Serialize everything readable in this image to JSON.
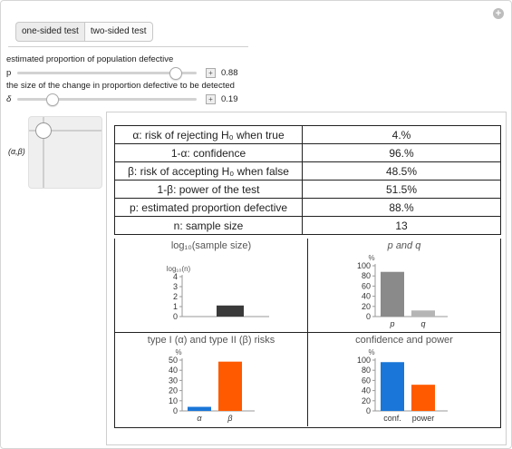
{
  "controls": {
    "test_options": [
      "one-sided test",
      "two-sided test"
    ],
    "selected_test": "two-sided test",
    "p_caption": "estimated proportion of population defective",
    "p_name": "p",
    "p_value": "0.88",
    "p_fraction": 0.88,
    "delta_caption": "the size of the change in proportion defective to be detected",
    "delta_name": "δ",
    "delta_value": "0.19",
    "delta_fraction": 0.19,
    "locator_label": "(α,β)"
  },
  "table": [
    {
      "label": "α: risk of rejecting H₀ when true",
      "value": "4.%"
    },
    {
      "label": "1-α: confidence",
      "value": "96.%"
    },
    {
      "label": "β: risk of accepting H₀ when false",
      "value": "48.5%"
    },
    {
      "label": "1-β: power of the test",
      "value": "51.5%"
    },
    {
      "label": "p: estimated proportion defective",
      "value": "88.%"
    },
    {
      "label": "n: sample size",
      "value": "13"
    }
  ],
  "colors": {
    "blue": "#1a76d8",
    "orange": "#ff5a00",
    "dark": "#3a3a3a",
    "gray": "#8a8a8a",
    "lightgray": "#b5b5b5"
  },
  "chart_data": [
    {
      "type": "bar",
      "title": "log₁₀(sample size)",
      "ylabel": "log₁₀(n)",
      "categories": [
        ""
      ],
      "values": [
        1.11
      ],
      "ylim": [
        0,
        4
      ],
      "yticks": [
        "0",
        "1",
        "2",
        "3",
        "4"
      ],
      "colors": [
        "#3a3a3a"
      ]
    },
    {
      "type": "bar",
      "title": "p and q",
      "ylabel": "%",
      "categories": [
        "p",
        "q"
      ],
      "values": [
        88,
        12
      ],
      "ylim": [
        0,
        100
      ],
      "yticks": [
        "0",
        "20",
        "40",
        "60",
        "80",
        "100"
      ],
      "colors": [
        "#8a8a8a",
        "#b5b5b5"
      ]
    },
    {
      "type": "bar",
      "title": "type I (α) and type II (β) risks",
      "ylabel": "%",
      "categories": [
        "α",
        "β"
      ],
      "values": [
        4,
        48.5
      ],
      "ylim": [
        0,
        50
      ],
      "yticks": [
        "0",
        "10",
        "20",
        "30",
        "40",
        "50"
      ],
      "colors": [
        "#1a76d8",
        "#ff5a00"
      ]
    },
    {
      "type": "bar",
      "title": "confidence and power",
      "ylabel": "%",
      "categories": [
        "conf.",
        "power"
      ],
      "values": [
        96,
        51.5
      ],
      "ylim": [
        0,
        100
      ],
      "yticks": [
        "0",
        "20",
        "40",
        "60",
        "80",
        "100"
      ],
      "colors": [
        "#1a76d8",
        "#ff5a00"
      ]
    }
  ]
}
